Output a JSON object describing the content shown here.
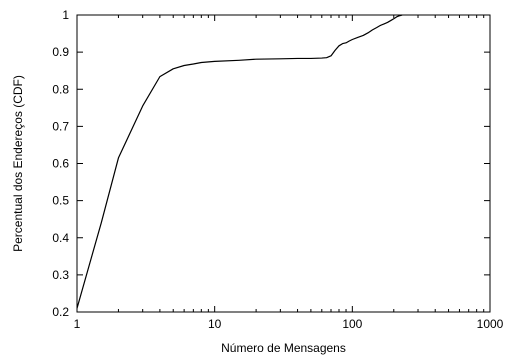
{
  "chart_data": {
    "type": "line",
    "title": "",
    "xlabel": "Número de Mensagens",
    "ylabel": "Percentual dos Endereços (CDF)",
    "xscale": "log",
    "xlim": [
      1,
      1000
    ],
    "ylim": [
      0.2,
      1.0
    ],
    "xticks": [
      1,
      10,
      100,
      1000
    ],
    "xtick_labels": [
      "1",
      "10",
      "100",
      "1000"
    ],
    "yticks": [
      0.2,
      0.3,
      0.4,
      0.5,
      0.6,
      0.7,
      0.8,
      0.9,
      1.0
    ],
    "ytick_labels": [
      "0.2",
      "0.3",
      "0.4",
      "0.5",
      "0.6",
      "0.7",
      "0.8",
      "0.9",
      "1"
    ],
    "grid": false,
    "legend": "none",
    "colors": {
      "line": "#000000",
      "axes": "#000000"
    },
    "series": [
      {
        "x": [
          1,
          1.5,
          2,
          3,
          4,
          5,
          6,
          7,
          8,
          10,
          15,
          20,
          30,
          40,
          50,
          60,
          65,
          70,
          75,
          80,
          85,
          90,
          95,
          100,
          110,
          120,
          130,
          140,
          150,
          160,
          170,
          180,
          190,
          200,
          210,
          220,
          230
        ],
        "y": [
          0.21,
          0.44,
          0.615,
          0.755,
          0.834,
          0.855,
          0.864,
          0.868,
          0.872,
          0.875,
          0.878,
          0.881,
          0.882,
          0.883,
          0.883,
          0.884,
          0.885,
          0.89,
          0.905,
          0.917,
          0.923,
          0.925,
          0.93,
          0.934,
          0.94,
          0.945,
          0.952,
          0.96,
          0.966,
          0.972,
          0.976,
          0.98,
          0.985,
          0.99,
          0.995,
          0.998,
          1.0
        ]
      }
    ]
  }
}
